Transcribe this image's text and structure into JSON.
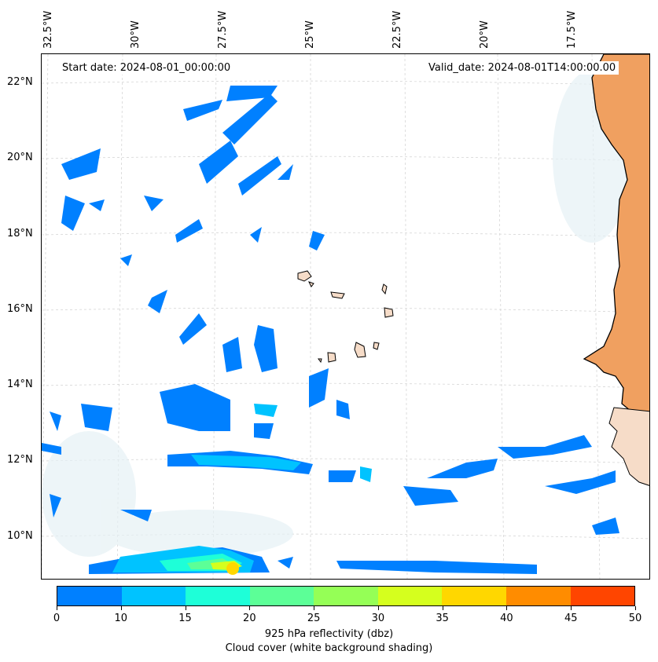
{
  "info": {
    "start_date": "Start date: 2024-08-01_00:00:00",
    "valid_date": "Valid_date: 2024-08-01T14:00:00.00"
  },
  "lon_labels": [
    "32.5°W",
    "30°W",
    "27.5°W",
    "25°W",
    "22.5°W",
    "20°W",
    "17.5°W"
  ],
  "lat_labels": [
    "22°N",
    "20°N",
    "18°N",
    "16°N",
    "14°N",
    "12°N",
    "10°N"
  ],
  "colorbar": {
    "ticks": [
      "0",
      "10",
      "15",
      "20",
      "25",
      "30",
      "35",
      "40",
      "45",
      "50"
    ],
    "colors": [
      "#0080ff",
      "#00c3ff",
      "#1effd8",
      "#5cff97",
      "#95ff56",
      "#d5ff1e",
      "#ffd700",
      "#ff8c00",
      "#ff4500"
    ],
    "title_line1": "925 hPa reflectivity (dbz)",
    "title_line2": "Cloud cover (white background shading)"
  },
  "colors": {
    "land": "#f0a060",
    "land_light": "#f6dcc8",
    "coast": "#000000",
    "sea_haze": "#cfe4ec",
    "grid": "#c8c8c8"
  }
}
